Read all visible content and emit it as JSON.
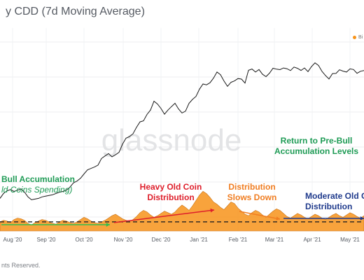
{
  "title": "y CDD (7d Moving Average)",
  "copyright": "nts Reserved.",
  "watermark": "glassnode",
  "legend": {
    "label": "Bi",
    "color": "#f7931a"
  },
  "chart_data": {
    "type": "area",
    "x_ticks": [
      "Aug '20",
      "Sep '20",
      "Oct '20",
      "Nov '20",
      "Dec '20",
      "Jan '21",
      "Feb '21",
      "Mar '21",
      "Apr '21",
      "May '21"
    ],
    "series": [
      {
        "name": "Bi",
        "color": "#f7931a",
        "values": [
          12,
          14,
          13,
          11,
          15,
          17,
          16,
          14,
          10,
          8,
          11,
          13,
          15,
          14,
          12,
          10,
          9,
          12,
          14,
          13,
          11,
          10,
          12,
          15,
          18,
          16,
          13,
          11,
          10,
          12,
          14,
          17,
          20,
          22,
          19,
          16,
          14,
          13,
          15,
          19,
          24,
          27,
          25,
          21,
          18,
          20,
          23,
          26,
          24,
          22,
          25,
          30,
          34,
          31,
          27,
          33,
          40,
          47,
          52,
          49,
          44,
          38,
          35,
          31,
          28,
          33,
          38,
          36,
          30,
          26,
          22,
          20,
          24,
          27,
          25,
          21,
          18,
          22,
          26,
          29,
          27,
          23,
          19,
          17,
          20,
          23,
          21,
          18,
          16,
          19,
          22,
          20,
          17,
          15,
          18,
          21,
          23,
          20,
          18,
          21,
          24,
          22,
          19,
          17,
          20
        ]
      },
      {
        "values": [
          10500,
          11200,
          11600,
          11800,
          11500,
          11700,
          11900,
          11400,
          10700,
          10300,
          10400,
          10500,
          10700,
          10800,
          10900,
          11000,
          11200,
          11400,
          11500,
          11700,
          12200,
          12900,
          13200,
          13700,
          14500,
          15300,
          15600,
          15900,
          16300,
          17800,
          18400,
          19000,
          18200,
          18700,
          19300,
          21500,
          23300,
          23800,
          24700,
          26900,
          28900,
          29300,
          31900,
          33800,
          38000,
          36600,
          34500,
          32000,
          33800,
          35400,
          37000,
          34300,
          32500,
          33300,
          36900,
          38900,
          40500,
          44600,
          47700,
          47200,
          48500,
          51600,
          55900,
          54000,
          49600,
          46300,
          48800,
          49700,
          51300,
          50900,
          48300,
          57200,
          58200,
          55900,
          57800,
          54300,
          52600,
          55100,
          58800,
          58100,
          57700,
          59000,
          58400,
          57000,
          59700,
          58700,
          57100,
          59000,
          56200,
          60100,
          63100,
          61000,
          56400,
          53400,
          51000,
          54800,
          54900,
          57600,
          56600,
          55900,
          58300,
          57800,
          55000,
          56500,
          57000
        ]
      }
    ],
    "threshold": 12,
    "annotations": [
      {
        "text": [
          "Bull Accumulation",
          "ld Coins Spending)"
        ],
        "color": "#1e9b55",
        "style": "italic-second"
      },
      {
        "text": [
          "Heavy Old Coin",
          "Distribution"
        ],
        "color": "#de1f2b"
      },
      {
        "text": [
          "Distribution",
          "Slows Down"
        ],
        "color": "#f07d21"
      },
      {
        "text": [
          "Moderate Old C",
          "Distribution"
        ],
        "color": "#1f3a8c"
      },
      {
        "text": [
          "Return to Pre-Bull",
          "Accumulation Levels"
        ],
        "color": "#1e9b55"
      }
    ],
    "arrows": [
      {
        "color": "#2fbf4e",
        "from": "Aug '20",
        "to": "Nov '20"
      },
      {
        "color": "#de1f2b",
        "from": "Nov '20",
        "to": "Jan '21"
      },
      {
        "color": "#f07d21",
        "from": "Feb '21",
        "to": "Mar '21"
      },
      {
        "color": "#1f3a8c",
        "from": "Mar '21",
        "to": "May '21"
      }
    ],
    "grid": true
  }
}
